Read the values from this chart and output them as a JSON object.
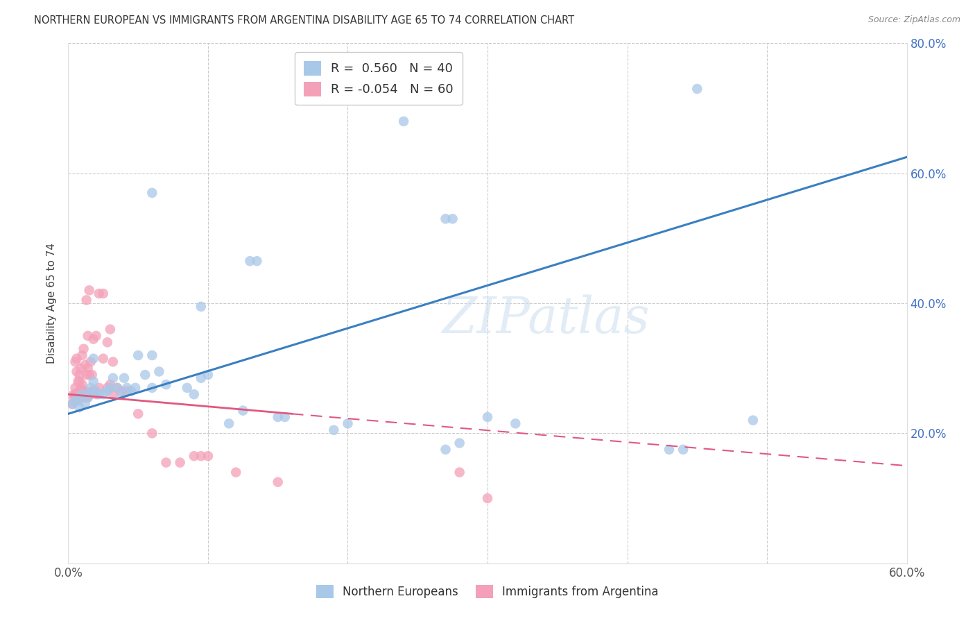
{
  "title": "NORTHERN EUROPEAN VS IMMIGRANTS FROM ARGENTINA DISABILITY AGE 65 TO 74 CORRELATION CHART",
  "source": "Source: ZipAtlas.com",
  "ylabel": "Disability Age 65 to 74",
  "xlim": [
    0.0,
    0.6
  ],
  "ylim": [
    0.0,
    0.8
  ],
  "x_ticks": [
    0.0,
    0.1,
    0.2,
    0.3,
    0.4,
    0.5,
    0.6
  ],
  "x_tick_labels": [
    "0.0%",
    "",
    "",
    "",
    "",
    "",
    "60.0%"
  ],
  "y_ticks": [
    0.0,
    0.2,
    0.4,
    0.6,
    0.8
  ],
  "y_tick_labels_right": [
    "",
    "20.0%",
    "40.0%",
    "60.0%",
    "80.0%"
  ],
  "watermark": "ZIPatlas",
  "blue_color": "#a8c8e8",
  "pink_color": "#f4a0b8",
  "blue_line_color": "#3a7fc1",
  "pink_line_color": "#e05880",
  "blue_scatter": [
    [
      0.003,
      0.245
    ],
    [
      0.005,
      0.25
    ],
    [
      0.007,
      0.255
    ],
    [
      0.008,
      0.24
    ],
    [
      0.01,
      0.26
    ],
    [
      0.012,
      0.245
    ],
    [
      0.014,
      0.255
    ],
    [
      0.015,
      0.26
    ],
    [
      0.016,
      0.27
    ],
    [
      0.018,
      0.28
    ],
    [
      0.018,
      0.315
    ],
    [
      0.02,
      0.265
    ],
    [
      0.022,
      0.26
    ],
    [
      0.025,
      0.26
    ],
    [
      0.028,
      0.265
    ],
    [
      0.03,
      0.27
    ],
    [
      0.032,
      0.285
    ],
    [
      0.035,
      0.27
    ],
    [
      0.038,
      0.26
    ],
    [
      0.04,
      0.285
    ],
    [
      0.042,
      0.27
    ],
    [
      0.045,
      0.265
    ],
    [
      0.048,
      0.27
    ],
    [
      0.05,
      0.32
    ],
    [
      0.055,
      0.29
    ],
    [
      0.06,
      0.27
    ],
    [
      0.06,
      0.32
    ],
    [
      0.065,
      0.295
    ],
    [
      0.07,
      0.275
    ],
    [
      0.085,
      0.27
    ],
    [
      0.09,
      0.26
    ],
    [
      0.095,
      0.285
    ],
    [
      0.1,
      0.29
    ],
    [
      0.115,
      0.215
    ],
    [
      0.125,
      0.235
    ],
    [
      0.15,
      0.225
    ],
    [
      0.155,
      0.225
    ],
    [
      0.19,
      0.205
    ],
    [
      0.2,
      0.215
    ],
    [
      0.27,
      0.175
    ],
    [
      0.28,
      0.185
    ],
    [
      0.3,
      0.225
    ],
    [
      0.32,
      0.215
    ],
    [
      0.43,
      0.175
    ],
    [
      0.44,
      0.175
    ],
    [
      0.49,
      0.22
    ],
    [
      0.095,
      0.395
    ],
    [
      0.13,
      0.465
    ],
    [
      0.135,
      0.465
    ],
    [
      0.27,
      0.53
    ],
    [
      0.275,
      0.53
    ],
    [
      0.06,
      0.57
    ],
    [
      0.45,
      0.73
    ],
    [
      0.24,
      0.68
    ]
  ],
  "pink_scatter": [
    [
      0.003,
      0.245
    ],
    [
      0.004,
      0.255
    ],
    [
      0.004,
      0.26
    ],
    [
      0.005,
      0.26
    ],
    [
      0.005,
      0.27
    ],
    [
      0.005,
      0.31
    ],
    [
      0.006,
      0.26
    ],
    [
      0.006,
      0.295
    ],
    [
      0.006,
      0.315
    ],
    [
      0.007,
      0.26
    ],
    [
      0.007,
      0.25
    ],
    [
      0.007,
      0.28
    ],
    [
      0.008,
      0.265
    ],
    [
      0.008,
      0.28
    ],
    [
      0.008,
      0.29
    ],
    [
      0.009,
      0.265
    ],
    [
      0.009,
      0.27
    ],
    [
      0.009,
      0.3
    ],
    [
      0.01,
      0.26
    ],
    [
      0.01,
      0.275
    ],
    [
      0.01,
      0.32
    ],
    [
      0.011,
      0.26
    ],
    [
      0.011,
      0.265
    ],
    [
      0.011,
      0.33
    ],
    [
      0.012,
      0.255
    ],
    [
      0.012,
      0.265
    ],
    [
      0.012,
      0.305
    ],
    [
      0.013,
      0.26
    ],
    [
      0.013,
      0.29
    ],
    [
      0.013,
      0.405
    ],
    [
      0.014,
      0.255
    ],
    [
      0.014,
      0.3
    ],
    [
      0.014,
      0.35
    ],
    [
      0.015,
      0.26
    ],
    [
      0.015,
      0.29
    ],
    [
      0.015,
      0.42
    ],
    [
      0.016,
      0.26
    ],
    [
      0.016,
      0.31
    ],
    [
      0.017,
      0.265
    ],
    [
      0.017,
      0.29
    ],
    [
      0.018,
      0.265
    ],
    [
      0.018,
      0.345
    ],
    [
      0.02,
      0.26
    ],
    [
      0.02,
      0.35
    ],
    [
      0.022,
      0.27
    ],
    [
      0.022,
      0.415
    ],
    [
      0.025,
      0.315
    ],
    [
      0.025,
      0.415
    ],
    [
      0.028,
      0.27
    ],
    [
      0.028,
      0.34
    ],
    [
      0.03,
      0.275
    ],
    [
      0.03,
      0.36
    ],
    [
      0.032,
      0.26
    ],
    [
      0.032,
      0.31
    ],
    [
      0.035,
      0.27
    ],
    [
      0.038,
      0.265
    ],
    [
      0.042,
      0.265
    ],
    [
      0.05,
      0.23
    ],
    [
      0.06,
      0.2
    ],
    [
      0.09,
      0.165
    ],
    [
      0.12,
      0.14
    ],
    [
      0.15,
      0.125
    ],
    [
      0.28,
      0.14
    ],
    [
      0.3,
      0.1
    ],
    [
      0.07,
      0.155
    ],
    [
      0.08,
      0.155
    ],
    [
      0.095,
      0.165
    ],
    [
      0.1,
      0.165
    ]
  ],
  "blue_trendline_solid": [
    [
      0.0,
      0.23
    ],
    [
      0.6,
      0.625
    ]
  ],
  "pink_trendline_solid": [
    [
      0.0,
      0.26
    ],
    [
      0.16,
      0.23
    ]
  ],
  "pink_trendline_dash": [
    [
      0.16,
      0.23
    ],
    [
      0.6,
      0.15
    ]
  ]
}
